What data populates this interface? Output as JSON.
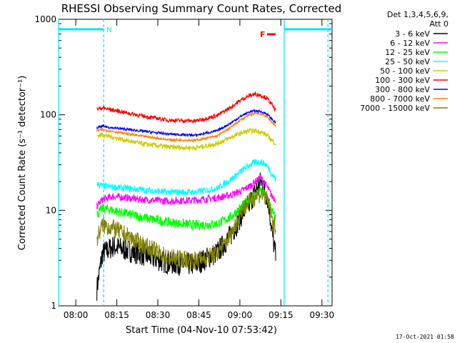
{
  "chart_data": {
    "type": "line",
    "title": "RHESSI Observing Summary Count Rates, Corrected",
    "xlabel": "Start Time (04-Nov-10 07:53:42)",
    "ylabel": "Corrected Count Rate (s⁻¹ detector⁻¹)",
    "yscale": "log",
    "ylim": [
      1,
      1000
    ],
    "xlim_minutes": [
      0,
      100
    ],
    "x_ticks": [
      {
        "t": 6.3,
        "label": "08:00"
      },
      {
        "t": 21.3,
        "label": "08:15"
      },
      {
        "t": 36.3,
        "label": "08:30"
      },
      {
        "t": 51.3,
        "label": "08:45"
      },
      {
        "t": 66.3,
        "label": "09:00"
      },
      {
        "t": 81.3,
        "label": "09:15"
      },
      {
        "t": 96.3,
        "label": "09:30"
      }
    ],
    "y_ticks": [
      {
        "v": 1,
        "label": "1"
      },
      {
        "v": 10,
        "label": "10"
      },
      {
        "v": 100,
        "label": "100"
      },
      {
        "v": 1000,
        "label": "1000"
      }
    ],
    "legend_header": [
      "Det 1,3,4,5,6,9,",
      "Att 0"
    ],
    "legend_position": "right",
    "series": [
      {
        "name": "3 - 6 keV",
        "color": "#000000",
        "t": [
          14,
          16,
          20,
          30,
          40,
          50,
          58,
          63,
          67,
          70,
          72,
          74,
          76,
          77,
          78,
          79.5
        ],
        "values": [
          1.5,
          3.5,
          4.2,
          3.5,
          2.8,
          2.7,
          3.6,
          5.5,
          9,
          12,
          16,
          20,
          15,
          11,
          6,
          3.2
        ]
      },
      {
        "name": "6 - 12 keV",
        "color": "#ff00ff",
        "t": [
          14,
          16,
          20,
          30,
          40,
          50,
          58,
          63,
          67,
          70,
          72,
          74,
          76,
          77,
          78,
          79.5
        ],
        "values": [
          11,
          13,
          14,
          13,
          12.5,
          12.8,
          13.5,
          14.5,
          16,
          18,
          20,
          22,
          18,
          16,
          14,
          13
        ]
      },
      {
        "name": "12 - 25 keV",
        "color": "#00ff00",
        "t": [
          14,
          16,
          20,
          30,
          40,
          50,
          58,
          63,
          67,
          70,
          72,
          74,
          76,
          77,
          78,
          79.5
        ],
        "values": [
          9,
          10.5,
          10,
          8.5,
          7.5,
          7,
          7.2,
          8.5,
          11,
          13,
          14.5,
          16,
          14,
          12,
          10,
          8
        ]
      },
      {
        "name": "25 - 50 keV",
        "color": "#00ffff",
        "t": [
          14,
          16,
          20,
          30,
          40,
          50,
          58,
          63,
          67,
          70,
          72,
          74,
          76,
          77,
          78,
          79.5
        ],
        "values": [
          19,
          18,
          17.5,
          16.5,
          15.5,
          15.5,
          17,
          21,
          26,
          30,
          32,
          32,
          30,
          27,
          24,
          21
        ]
      },
      {
        "name": "50 - 100 keV",
        "color": "#cccc00",
        "t": [
          14,
          16,
          20,
          30,
          40,
          50,
          58,
          63,
          67,
          70,
          72,
          74,
          76,
          77,
          78,
          79.5
        ],
        "values": [
          60,
          62,
          58,
          50,
          46,
          45,
          50,
          58,
          65,
          68,
          68,
          66,
          62,
          58,
          54,
          50
        ]
      },
      {
        "name": "100 - 300 keV",
        "color": "#ff0000",
        "t": [
          14,
          16,
          20,
          30,
          40,
          50,
          58,
          63,
          67,
          70,
          72,
          74,
          76,
          77,
          78,
          79.5
        ],
        "values": [
          115,
          118,
          112,
          98,
          88,
          86,
          98,
          120,
          145,
          160,
          165,
          160,
          150,
          140,
          128,
          110
        ]
      },
      {
        "name": "300 - 800 keV",
        "color": "#0000ff",
        "t": [
          14,
          16,
          20,
          30,
          40,
          50,
          58,
          63,
          67,
          70,
          72,
          74,
          76,
          77,
          78,
          79.5
        ],
        "values": [
          73,
          76,
          73,
          68,
          63,
          61,
          68,
          82,
          98,
          108,
          110,
          108,
          103,
          97,
          90,
          82
        ]
      },
      {
        "name": "800 - 7000 keV",
        "color": "#ff8000",
        "t": [
          14,
          16,
          20,
          30,
          40,
          50,
          58,
          63,
          67,
          70,
          72,
          74,
          76,
          77,
          78,
          79.5
        ],
        "values": [
          68,
          70,
          67,
          60,
          55,
          54,
          60,
          74,
          90,
          100,
          104,
          102,
          97,
          90,
          84,
          76
        ]
      },
      {
        "name": "7000 - 15000 keV",
        "color": "#808000",
        "t": [
          14,
          16,
          20,
          30,
          40,
          50,
          58,
          63,
          67,
          70,
          72,
          74,
          76,
          77,
          78,
          79.5
        ],
        "values": [
          5,
          7,
          6.5,
          4.5,
          3.2,
          3,
          3.5,
          5.5,
          10,
          12.5,
          14,
          15,
          13,
          11,
          8,
          6
        ]
      }
    ],
    "attenuator_segments": [
      {
        "start": 0,
        "end": 16.5
      },
      {
        "start": 82.5,
        "end": 100
      }
    ],
    "vertical_markers": [
      {
        "t": 0,
        "style": "solid"
      },
      {
        "t": 16.5,
        "style": "dashed",
        "label": "N"
      },
      {
        "t": 82.5,
        "style": "solid"
      },
      {
        "t": 98.5,
        "style": "dashed"
      }
    ],
    "flag_label": "F",
    "timestamp": "17-Oct-2021 01:58"
  }
}
